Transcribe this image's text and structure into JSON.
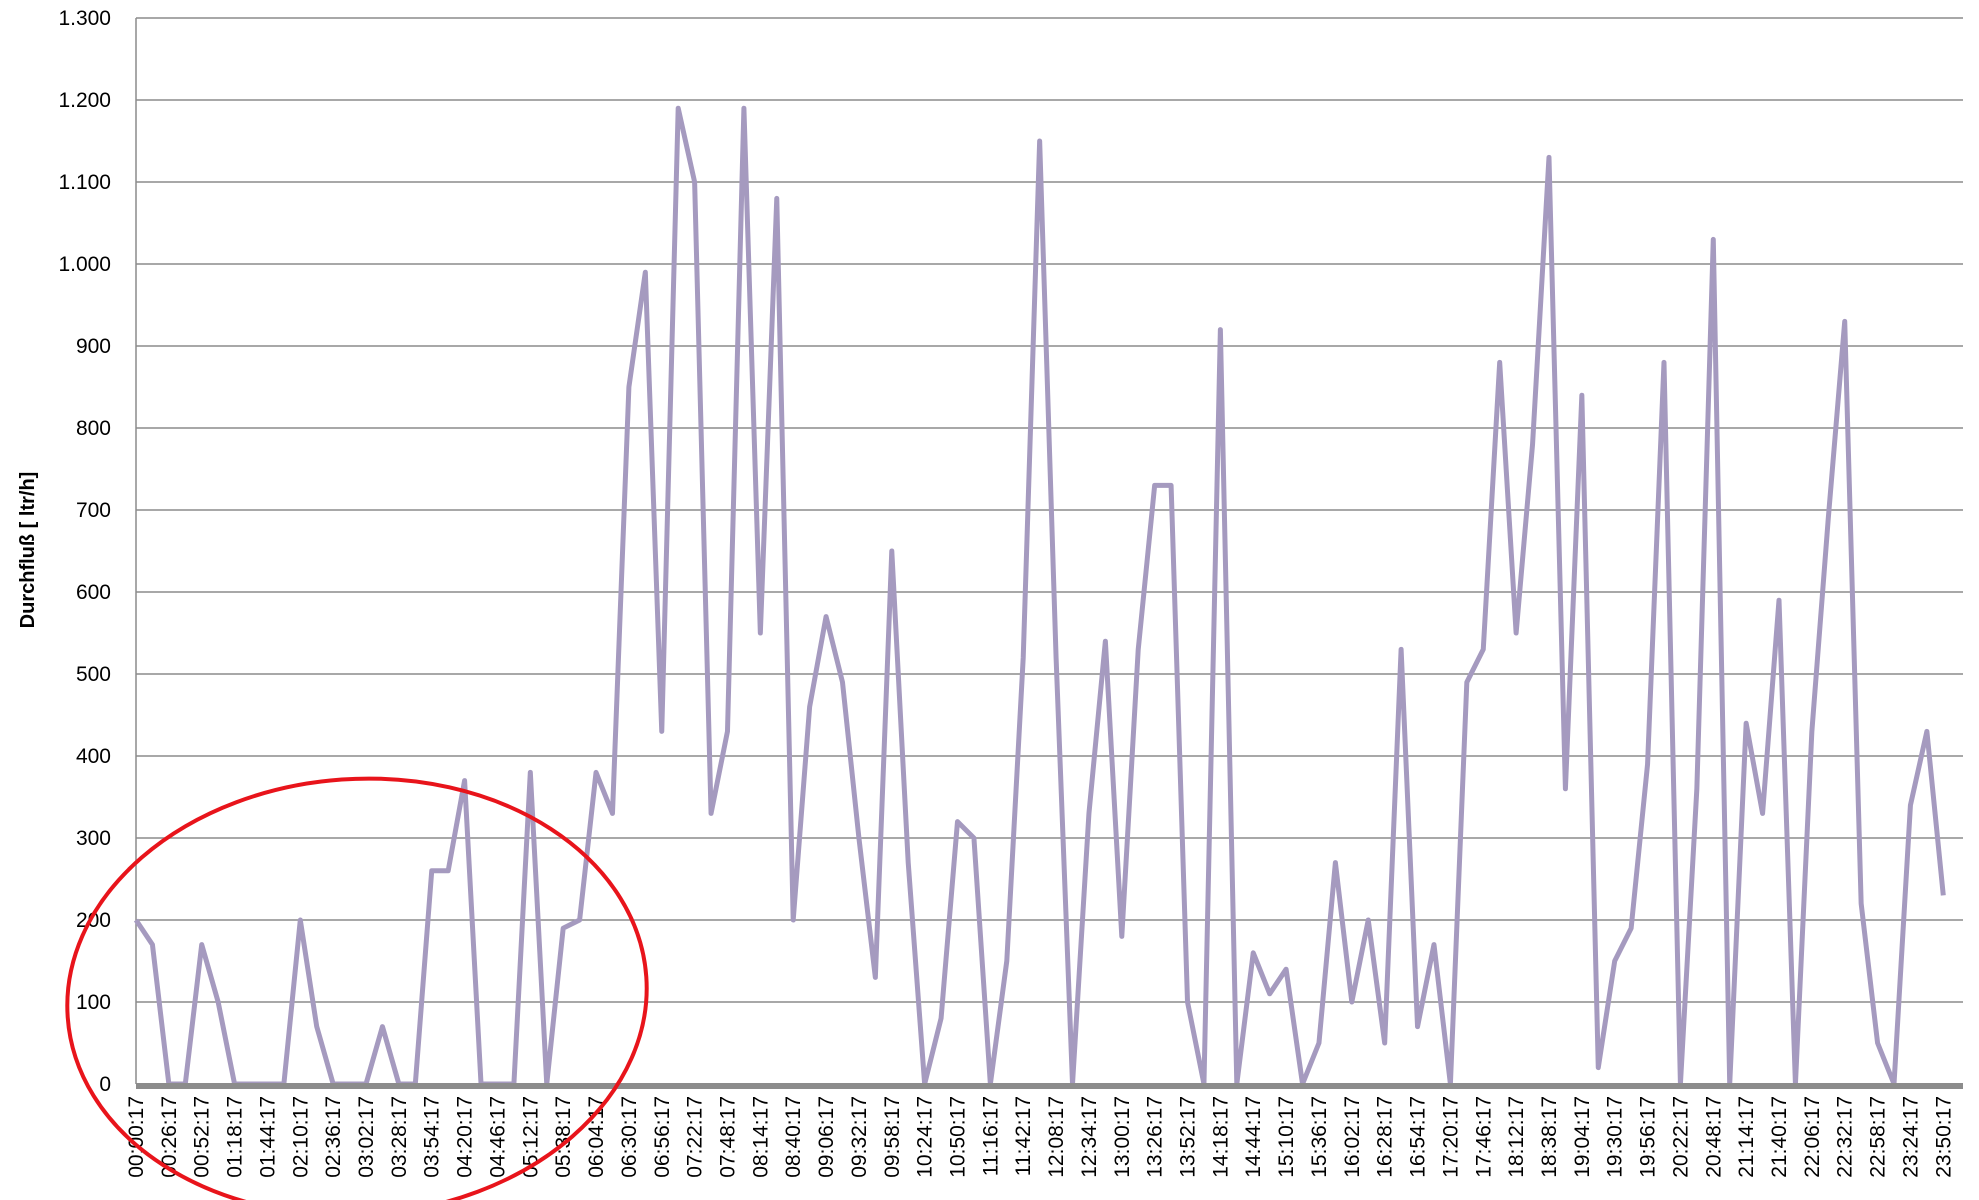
{
  "chart_data": {
    "type": "line",
    "y_label": "Durchfluß [ ltr/h]",
    "categories": [
      "00:00:17",
      null,
      "00:26:17",
      null,
      "00:52:17",
      null,
      "01:18:17",
      null,
      "01:44:17",
      null,
      "02:10:17",
      null,
      "02:36:17",
      null,
      "03:02:17",
      null,
      "03:28:17",
      null,
      "03:54:17",
      null,
      "04:20:17",
      null,
      "04:46:17",
      null,
      "05:12:17",
      null,
      "05:38:17",
      null,
      "06:04:17",
      null,
      "06:30:17",
      null,
      "06:56:17",
      null,
      "07:22:17",
      null,
      "07:48:17",
      null,
      "08:14:17",
      null,
      "08:40:17",
      null,
      "09:06:17",
      null,
      "09:32:17",
      null,
      "09:58:17",
      null,
      "10:24:17",
      null,
      "10:50:17",
      null,
      "11:16:17",
      null,
      "11:42:17",
      null,
      "12:08:17",
      null,
      "12:34:17",
      null,
      "13:00:17",
      null,
      "13:26:17",
      null,
      "13:52:17",
      null,
      "14:18:17",
      null,
      "14:44:17",
      null,
      "15:10:17",
      null,
      "15:36:17",
      null,
      "16:02:17",
      null,
      "16:28:17",
      null,
      "16:54:17",
      null,
      "17:20:17",
      null,
      "17:46:17",
      null,
      "18:12:17",
      null,
      "18:38:17",
      null,
      "19:04:17",
      null,
      "19:30:17",
      null,
      "19:56:17",
      null,
      "20:22:17",
      null,
      "20:48:17",
      null,
      "21:14:17",
      null,
      "21:40:17",
      null,
      "22:06:17",
      null,
      "22:32:17",
      null,
      "22:58:17",
      null,
      "23:24:17",
      null,
      "23:50:17"
    ],
    "series": [
      {
        "color": "#a59abf",
        "values": [
          200,
          170,
          0,
          0,
          170,
          100,
          0,
          0,
          0,
          0,
          200,
          70,
          0,
          0,
          0,
          70,
          0,
          0,
          260,
          260,
          370,
          0,
          0,
          0,
          380,
          0,
          190,
          200,
          380,
          330,
          850,
          990,
          430,
          1190,
          1100,
          330,
          430,
          1190,
          550,
          1080,
          200,
          460,
          570,
          490,
          300,
          130,
          650,
          270,
          0,
          80,
          320,
          300,
          0,
          150,
          520,
          1150,
          520,
          0,
          330,
          540,
          180,
          530,
          730,
          730,
          100,
          0,
          920,
          0,
          160,
          110,
          140,
          0,
          50,
          270,
          100,
          200,
          50,
          530,
          70,
          170,
          0,
          490,
          530,
          880,
          550,
          780,
          1130,
          360,
          840,
          20,
          150,
          190,
          390,
          880,
          0,
          360,
          1030,
          0,
          440,
          330,
          590,
          0,
          430,
          690,
          930,
          220,
          50,
          0,
          340,
          430,
          230
        ]
      }
    ],
    "ylim": [
      0,
      1300
    ],
    "yticks": [
      0,
      100,
      200,
      300,
      400,
      500,
      600,
      700,
      800,
      900,
      {
        "value": 1000,
        "label": "1.000"
      },
      {
        "value": 1100,
        "label": "1.100"
      },
      {
        "value": 1200,
        "label": "1.200"
      },
      {
        "value": 1300,
        "label": "1.300"
      }
    ],
    "grid": true
  }
}
